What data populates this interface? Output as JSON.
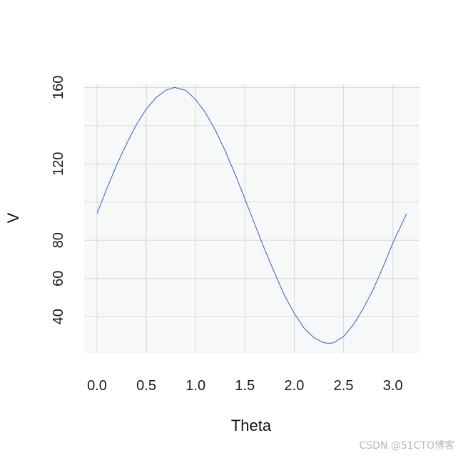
{
  "chart_data": {
    "type": "line",
    "title": "",
    "xlabel": "Theta",
    "ylabel": "V",
    "xlim": [
      -0.13,
      3.27
    ],
    "ylim": [
      21,
      162
    ],
    "xticks": [
      0.0,
      0.5,
      1.0,
      1.5,
      2.0,
      2.5,
      3.0
    ],
    "xtick_labels": [
      "0.0",
      "0.5",
      "1.0",
      "1.5",
      "2.0",
      "2.5",
      "3.0"
    ],
    "yticks": [
      40,
      60,
      80,
      120,
      160
    ],
    "ytick_labels": [
      "40",
      "60",
      "80",
      "120",
      "160"
    ],
    "ygrid": [
      40,
      60,
      80,
      100,
      120,
      140,
      160
    ],
    "grid": true,
    "legend": "none",
    "colors": {
      "line": "#4169e1",
      "panel": "#f7f8f8",
      "grid": "#d9d9d9"
    },
    "series": [
      {
        "x": [
          0.0,
          0.1,
          0.2,
          0.3,
          0.4,
          0.5,
          0.6,
          0.7,
          0.785,
          0.9,
          1.0,
          1.1,
          1.2,
          1.3,
          1.4,
          1.5,
          1.6,
          1.7,
          1.8,
          1.9,
          2.0,
          2.1,
          2.2,
          2.3,
          2.356,
          2.4,
          2.5,
          2.6,
          2.7,
          2.8,
          2.9,
          3.0,
          3.14
        ],
        "y": [
          94.0,
          107.1,
          119.5,
          130.5,
          140.6,
          148.7,
          154.7,
          158.6,
          160.0,
          158.5,
          153.7,
          146.7,
          137.6,
          126.8,
          114.6,
          101.6,
          88.3,
          75.2,
          63.0,
          51.3,
          41.7,
          34.0,
          29.0,
          26.4,
          26.0,
          26.4,
          29.6,
          35.8,
          44.2,
          54.2,
          65.9,
          78.6,
          94.0
        ]
      }
    ]
  },
  "watermark": "CSDN @51CTO博客"
}
